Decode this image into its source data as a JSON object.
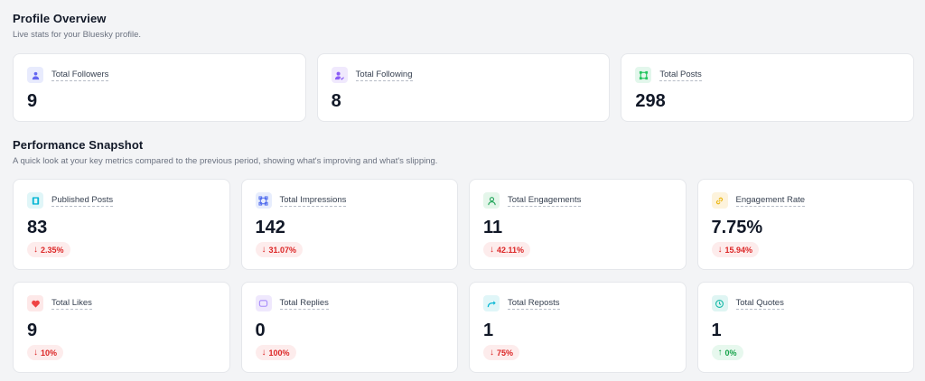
{
  "profile": {
    "title": "Profile Overview",
    "subtitle": "Live stats for your Bluesky profile.",
    "cards": [
      {
        "label": "Total Followers",
        "value": "9",
        "icon": "users-icon"
      },
      {
        "label": "Total Following",
        "value": "8",
        "icon": "user-follow-icon"
      },
      {
        "label": "Total Posts",
        "value": "298",
        "icon": "frame-icon"
      }
    ]
  },
  "performance": {
    "title": "Performance Snapshot",
    "subtitle": "A quick look at your key metrics compared to the previous period, showing what's improving and what's slipping.",
    "cards": [
      {
        "label": "Published Posts",
        "value": "83",
        "delta": "2.35%",
        "direction": "down",
        "icon": "book-icon"
      },
      {
        "label": "Total Impressions",
        "value": "142",
        "delta": "31.07%",
        "direction": "down",
        "icon": "frame-icon"
      },
      {
        "label": "Total Engagements",
        "value": "11",
        "delta": "42.11%",
        "direction": "down",
        "icon": "user-icon"
      },
      {
        "label": "Engagement Rate",
        "value": "7.75%",
        "delta": "15.94%",
        "direction": "down",
        "icon": "link-icon"
      },
      {
        "label": "Total Likes",
        "value": "9",
        "delta": "10%",
        "direction": "down",
        "icon": "heart-icon"
      },
      {
        "label": "Total Replies",
        "value": "0",
        "delta": "100%",
        "direction": "down",
        "icon": "chat-icon"
      },
      {
        "label": "Total Reposts",
        "value": "1",
        "delta": "75%",
        "direction": "down",
        "icon": "repost-arrow-icon"
      },
      {
        "label": "Total Quotes",
        "value": "1",
        "delta": "0%",
        "direction": "up",
        "icon": "clock-icon"
      }
    ]
  },
  "colors": {
    "down": "#dc2626",
    "up": "#16a34a",
    "background": "#f3f4f6"
  }
}
